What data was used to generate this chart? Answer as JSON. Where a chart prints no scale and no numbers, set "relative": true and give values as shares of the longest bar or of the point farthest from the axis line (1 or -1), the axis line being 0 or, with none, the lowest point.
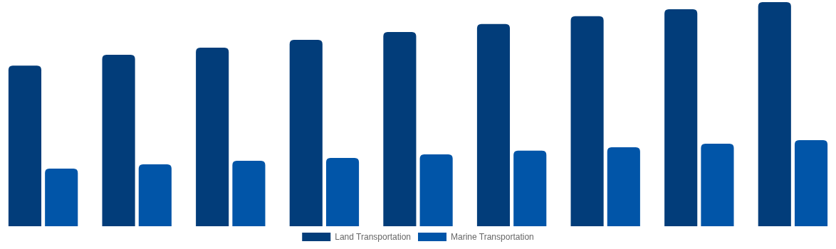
{
  "chart_data": {
    "type": "bar",
    "relative": true,
    "categories": [
      null,
      null,
      null,
      null,
      null,
      null,
      null,
      null,
      null
    ],
    "series": [
      {
        "name": "Land Transportation",
        "color": "#023d7a",
        "values": [
          0.717,
          0.765,
          0.797,
          0.832,
          0.867,
          0.902,
          0.937,
          0.968,
          1
        ]
      },
      {
        "name": "Marine Transportation",
        "color": "#0155a8",
        "values": [
          0.257,
          0.276,
          0.292,
          0.305,
          0.321,
          0.337,
          0.352,
          0.368,
          0.384
        ]
      }
    ],
    "legend": "bottom",
    "grid": false
  }
}
